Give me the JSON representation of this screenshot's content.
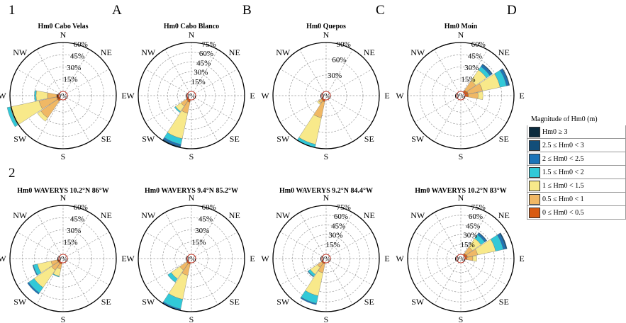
{
  "row_labels": [
    "1",
    "2"
  ],
  "panel_letters": [
    "A",
    "B",
    "C",
    "D"
  ],
  "directions": [
    "N",
    "NE",
    "E",
    "SE",
    "S",
    "SW",
    "W",
    "NW"
  ],
  "zero_label": "0%",
  "legend": {
    "title": "Magnitude of Hm0 (m)",
    "items": [
      {
        "label": "Hm0 ≥ 3",
        "color": "#0b2b3e"
      },
      {
        "label": "2.5 ≤ Hm0 < 3",
        "color": "#124e79"
      },
      {
        "label": "2 ≤ Hm0 < 2.5",
        "color": "#1b74b8"
      },
      {
        "label": "1.5 ≤ Hm0 < 2",
        "color": "#31c9d8"
      },
      {
        "label": "1 ≤ Hm0 < 1.5",
        "color": "#f8e98a"
      },
      {
        "label": "0.5 ≤ Hm0 < 1",
        "color": "#f0b865"
      },
      {
        "label": "0 ≤ Hm0 < 0.5",
        "color": "#d85b12"
      }
    ]
  },
  "chart_data": [
    {
      "type": "windrose",
      "title": "Hm0 Cabo Velas",
      "rmax": 60,
      "ticks": [
        "15%",
        "30%",
        "45%",
        "60%"
      ],
      "petals": [
        {
          "dir": 247.5,
          "total": 65,
          "segs": [
            {
              "bin": 6,
              "pct": 3
            },
            {
              "bin": 5,
              "pct": 22
            },
            {
              "bin": 4,
              "pct": 36
            },
            {
              "bin": 3,
              "pct": 4
            }
          ]
        },
        {
          "dir": 270,
          "total": 30,
          "segs": [
            {
              "bin": 6,
              "pct": 3
            },
            {
              "bin": 5,
              "pct": 11
            },
            {
              "bin": 4,
              "pct": 14
            },
            {
              "bin": 3,
              "pct": 2
            }
          ]
        },
        {
          "dir": 225,
          "total": 33,
          "segs": [
            {
              "bin": 6,
              "pct": 3
            },
            {
              "bin": 5,
              "pct": 25
            },
            {
              "bin": 4,
              "pct": 5
            }
          ]
        }
      ]
    },
    {
      "type": "windrose",
      "title": "Hm0 Cabo Blanco",
      "rmax": 75,
      "ticks": [
        "15%",
        "30%",
        "45%",
        "60%",
        "75%"
      ],
      "petals": [
        {
          "dir": 202.5,
          "total": 75,
          "segs": [
            {
              "bin": 6,
              "pct": 4
            },
            {
              "bin": 5,
              "pct": 17
            },
            {
              "bin": 4,
              "pct": 40
            },
            {
              "bin": 3,
              "pct": 9
            },
            {
              "bin": 2,
              "pct": 3
            },
            {
              "bin": 1,
              "pct": 2
            }
          ]
        },
        {
          "dir": 225,
          "total": 25,
          "segs": [
            {
              "bin": 6,
              "pct": 3
            },
            {
              "bin": 5,
              "pct": 10
            },
            {
              "bin": 4,
              "pct": 10
            },
            {
              "bin": 3,
              "pct": 2
            }
          ]
        }
      ]
    },
    {
      "type": "windrose",
      "title": "Hm0 Quepos",
      "rmax": 90,
      "ticks": [
        "30%",
        "60%",
        "90%"
      ],
      "petals": [
        {
          "dir": 202.5,
          "total": 90,
          "segs": [
            {
              "bin": 6,
              "pct": 4
            },
            {
              "bin": 5,
              "pct": 30
            },
            {
              "bin": 4,
              "pct": 50
            },
            {
              "bin": 3,
              "pct": 6
            }
          ]
        },
        {
          "dir": 225,
          "total": 12,
          "segs": [
            {
              "bin": 6,
              "pct": 3
            },
            {
              "bin": 5,
              "pct": 6
            },
            {
              "bin": 4,
              "pct": 3
            }
          ]
        }
      ]
    },
    {
      "type": "windrose",
      "title": "Hm0 Moín",
      "rmax": 60,
      "ticks": [
        "15%",
        "30%",
        "45%",
        "60%"
      ],
      "petals": [
        {
          "dir": 67.5,
          "total": 56,
          "segs": [
            {
              "bin": 6,
              "pct": 4
            },
            {
              "bin": 5,
              "pct": 18
            },
            {
              "bin": 4,
              "pct": 22
            },
            {
              "bin": 3,
              "pct": 8
            },
            {
              "bin": 2,
              "pct": 3
            },
            {
              "bin": 1,
              "pct": 1
            }
          ]
        },
        {
          "dir": 45,
          "total": 42,
          "segs": [
            {
              "bin": 6,
              "pct": 3
            },
            {
              "bin": 5,
              "pct": 14
            },
            {
              "bin": 4,
              "pct": 16
            },
            {
              "bin": 3,
              "pct": 5
            },
            {
              "bin": 2,
              "pct": 3
            },
            {
              "bin": 1,
              "pct": 1
            }
          ]
        },
        {
          "dir": 90,
          "total": 22,
          "segs": [
            {
              "bin": 6,
              "pct": 4
            },
            {
              "bin": 5,
              "pct": 12
            },
            {
              "bin": 4,
              "pct": 6
            }
          ]
        }
      ]
    },
    {
      "type": "windrose",
      "title": "Hm0 WAVERYS 10.2°N 86°W",
      "rmax": 60,
      "ticks": [
        "15%",
        "30%",
        "45%",
        "60%"
      ],
      "petals": [
        {
          "dir": 225,
          "total": 48,
          "segs": [
            {
              "bin": 6,
              "pct": 2
            },
            {
              "bin": 5,
              "pct": 10
            },
            {
              "bin": 4,
              "pct": 26
            },
            {
              "bin": 3,
              "pct": 8
            },
            {
              "bin": 2,
              "pct": 2
            }
          ]
        },
        {
          "dir": 247.5,
          "total": 33,
          "segs": [
            {
              "bin": 6,
              "pct": 2
            },
            {
              "bin": 5,
              "pct": 8
            },
            {
              "bin": 4,
              "pct": 17
            },
            {
              "bin": 3,
              "pct": 5
            },
            {
              "bin": 2,
              "pct": 1
            }
          ]
        },
        {
          "dir": 202.5,
          "total": 18,
          "segs": [
            {
              "bin": 6,
              "pct": 2
            },
            {
              "bin": 5,
              "pct": 6
            },
            {
              "bin": 4,
              "pct": 9
            },
            {
              "bin": 3,
              "pct": 1
            }
          ]
        }
      ]
    },
    {
      "type": "windrose",
      "title": "Hm0 WAVERYS 9.4°N 85.2°W",
      "rmax": 60,
      "ticks": [
        "15%",
        "30%",
        "45%",
        "60%"
      ],
      "petals": [
        {
          "dir": 202.5,
          "total": 60,
          "segs": [
            {
              "bin": 6,
              "pct": 2
            },
            {
              "bin": 5,
              "pct": 14
            },
            {
              "bin": 4,
              "pct": 30
            },
            {
              "bin": 3,
              "pct": 12
            },
            {
              "bin": 2,
              "pct": 2
            }
          ]
        },
        {
          "dir": 225,
          "total": 30,
          "segs": [
            {
              "bin": 6,
              "pct": 2
            },
            {
              "bin": 5,
              "pct": 10
            },
            {
              "bin": 4,
              "pct": 13
            },
            {
              "bin": 3,
              "pct": 5
            }
          ]
        }
      ]
    },
    {
      "type": "windrose",
      "title": "Hm0 WAVERYS 9.2°N 84.4°W",
      "rmax": 75,
      "ticks": [
        "15%",
        "30%",
        "45%",
        "60%",
        "75%"
      ],
      "petals": [
        {
          "dir": 202.5,
          "total": 66,
          "segs": [
            {
              "bin": 6,
              "pct": 2
            },
            {
              "bin": 5,
              "pct": 14
            },
            {
              "bin": 4,
              "pct": 36
            },
            {
              "bin": 3,
              "pct": 12
            },
            {
              "bin": 2,
              "pct": 2
            }
          ]
        },
        {
          "dir": 225,
          "total": 28,
          "segs": [
            {
              "bin": 6,
              "pct": 2
            },
            {
              "bin": 5,
              "pct": 8
            },
            {
              "bin": 4,
              "pct": 13
            },
            {
              "bin": 3,
              "pct": 4
            },
            {
              "bin": 2,
              "pct": 1
            }
          ]
        }
      ]
    },
    {
      "type": "windrose",
      "title": "Hm0 WAVERYS 10.2°N 83°W",
      "rmax": 75,
      "ticks": [
        "15%",
        "30%",
        "45%",
        "60%",
        "75%"
      ],
      "petals": [
        {
          "dir": 67.5,
          "total": 66,
          "segs": [
            {
              "bin": 6,
              "pct": 4
            },
            {
              "bin": 5,
              "pct": 16
            },
            {
              "bin": 4,
              "pct": 28
            },
            {
              "bin": 3,
              "pct": 12
            },
            {
              "bin": 2,
              "pct": 4
            },
            {
              "bin": 1,
              "pct": 2
            }
          ]
        },
        {
          "dir": 45,
          "total": 42,
          "segs": [
            {
              "bin": 6,
              "pct": 3
            },
            {
              "bin": 5,
              "pct": 12
            },
            {
              "bin": 4,
              "pct": 16
            },
            {
              "bin": 3,
              "pct": 7
            },
            {
              "bin": 2,
              "pct": 3
            },
            {
              "bin": 1,
              "pct": 1
            }
          ]
        },
        {
          "dir": 90,
          "total": 18,
          "segs": [
            {
              "bin": 6,
              "pct": 3
            },
            {
              "bin": 5,
              "pct": 9
            },
            {
              "bin": 4,
              "pct": 6
            }
          ]
        }
      ]
    }
  ]
}
